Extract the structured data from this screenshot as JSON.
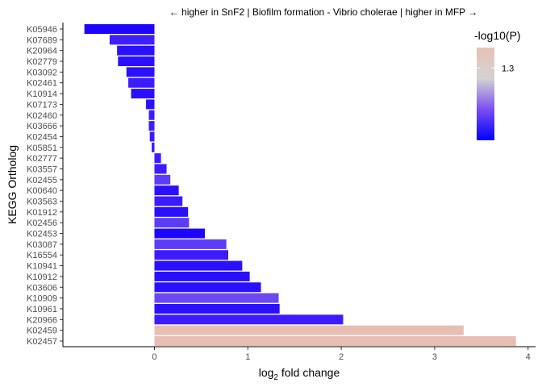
{
  "chart_data": {
    "type": "bar",
    "orientation": "horizontal",
    "title": "← higher in SnF2 | Biofilm formation - Vibrio cholerae | higher in MFP →",
    "xlabel_base": "log",
    "xlabel_sub": "2",
    "xlabel_rest": " fold change",
    "ylabel": "KEGG Ortholog",
    "xlim": [
      -0.98,
      4.08
    ],
    "xticks": [
      0,
      1,
      2,
      3,
      4
    ],
    "xtick_labels": [
      "0",
      "1",
      "2",
      "3",
      "4"
    ],
    "grid": false,
    "legend": {
      "title": "-log10(P)",
      "placement": "top-right",
      "tick_label": "1.3",
      "tick_fraction": 0.78,
      "colors": [
        "#0000ff",
        "#7a4ff0",
        "#d3d3d3",
        "#e8c0b6"
      ]
    },
    "categories": [
      "K05946",
      "K07689",
      "K20964",
      "K02779",
      "K03092",
      "K02461",
      "K10914",
      "K07173",
      "K02460",
      "K03666",
      "K02454",
      "K05851",
      "K02777",
      "K03557",
      "K02455",
      "K00640",
      "K03563",
      "K01912",
      "K02456",
      "K02453",
      "K03087",
      "K16554",
      "K10941",
      "K10912",
      "K03606",
      "K10909",
      "K10961",
      "K20966",
      "K02459",
      "K02457"
    ],
    "values": [
      -0.75,
      -0.48,
      -0.4,
      -0.39,
      -0.3,
      -0.28,
      -0.25,
      -0.09,
      -0.06,
      -0.06,
      -0.05,
      -0.03,
      0.07,
      0.13,
      0.17,
      0.26,
      0.3,
      0.36,
      0.37,
      0.54,
      0.77,
      0.79,
      0.94,
      1.02,
      1.14,
      1.33,
      1.34,
      2.02,
      3.31,
      3.87
    ],
    "colors": [
      "#1d06ff",
      "#3f1fff",
      "#2a10ff",
      "#2a10ff",
      "#2a10ff",
      "#3c1cff",
      "#2a10ff",
      "#2a10ff",
      "#3c1cff",
      "#3c1cff",
      "#3c1cff",
      "#3c1cff",
      "#3c1cff",
      "#3c1cff",
      "#5c3cf8",
      "#2a10ff",
      "#3c1cff",
      "#2a10ff",
      "#5c3cf8",
      "#1d06ff",
      "#5c3cf8",
      "#3c1cff",
      "#2a10ff",
      "#2a10ff",
      "#2a10ff",
      "#6a48f2",
      "#2a10ff",
      "#3c1cff",
      "#e8bdb2",
      "#e8bdb2"
    ]
  }
}
